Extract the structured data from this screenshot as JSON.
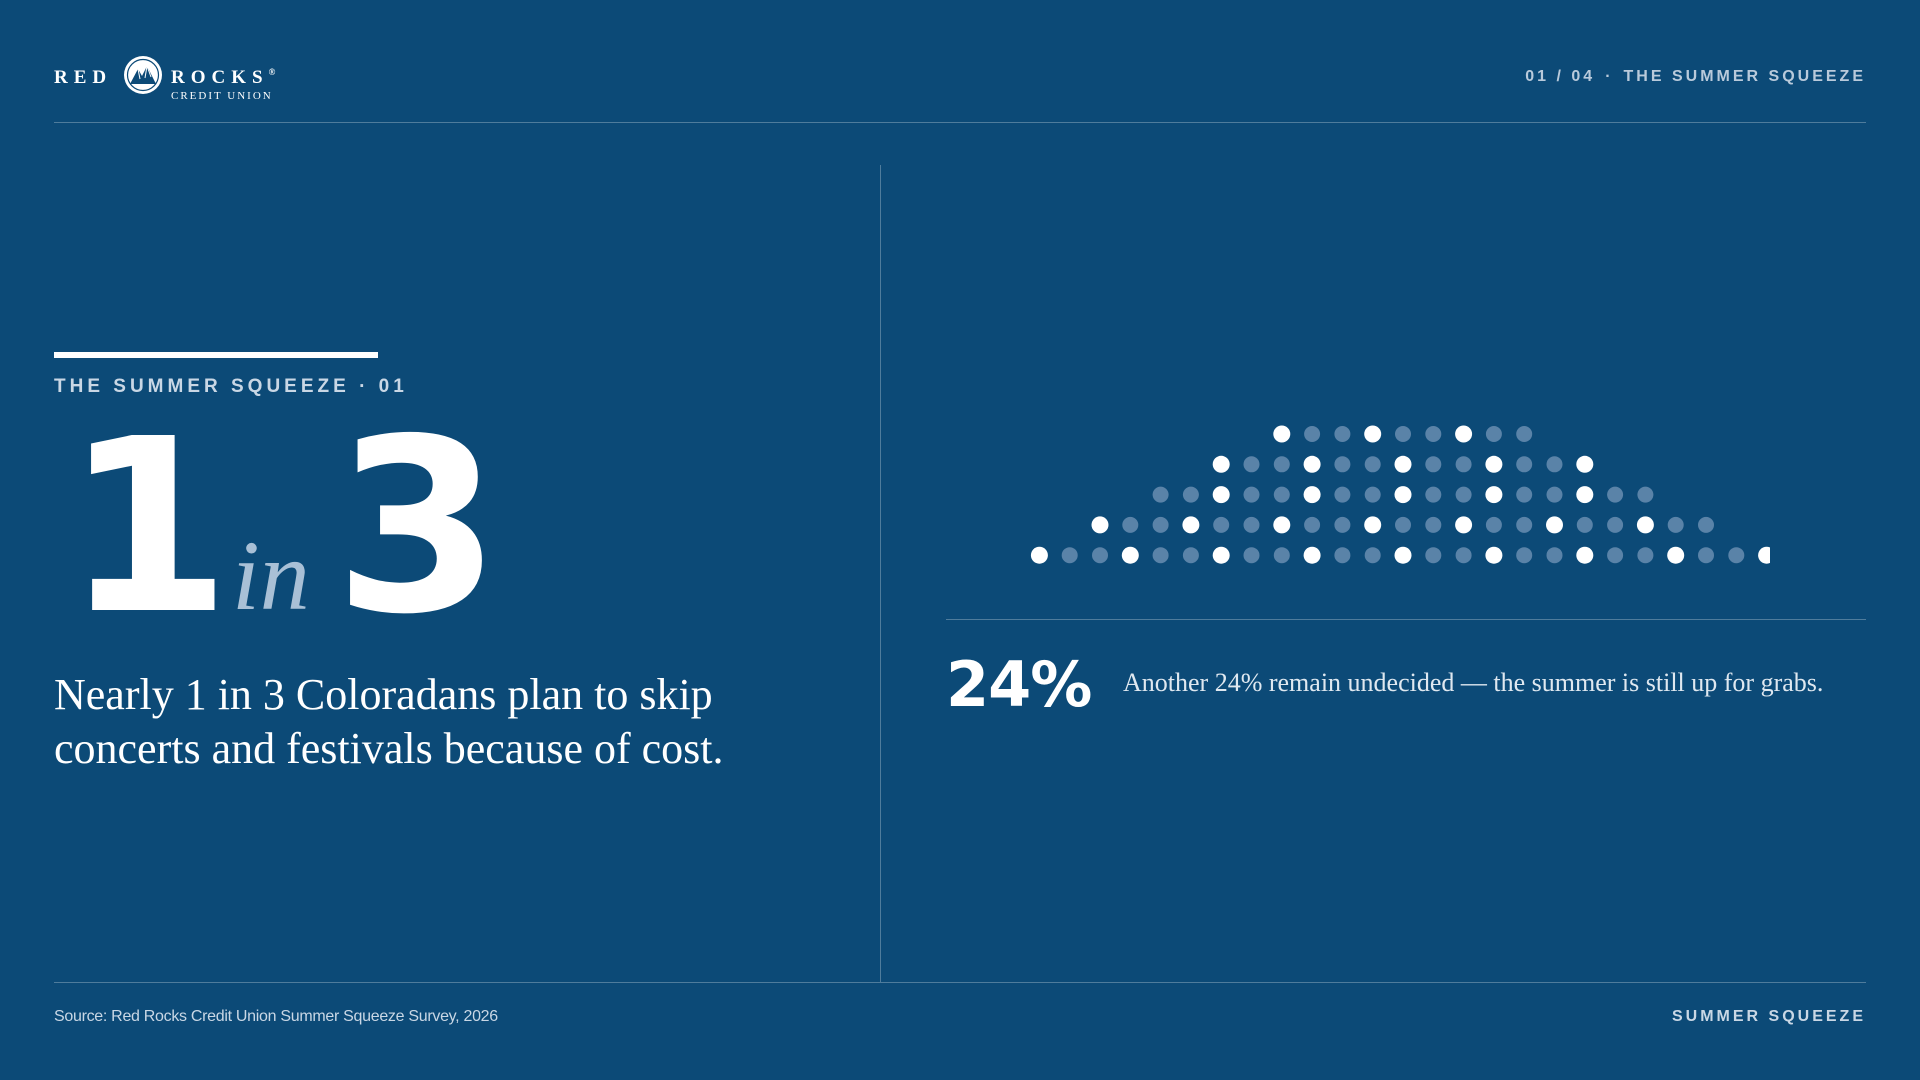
{
  "brand": {
    "name_left": "RED",
    "name_right": "ROCKS",
    "registered": "®",
    "subtitle": "CREDIT UNION",
    "emblem_icon": "mountain-emblem-icon"
  },
  "header": {
    "page": "01 / 04",
    "separator": "·",
    "section": "THE SUMMER SQUEEZE"
  },
  "left": {
    "kicker": "THE SUMMER SQUEEZE · 01",
    "stat_numerator": "1",
    "stat_word": "in",
    "stat_denominator": "3",
    "headline_line1": "Nearly 1 in 3 Coloradans plan to skip",
    "headline_line2": "concerts and festivals because of cost."
  },
  "chart_data": {
    "type": "dot-grid",
    "rows": [
      {
        "count": 9,
        "highlighted": [
          0,
          3,
          6
        ]
      },
      {
        "count": 13,
        "highlighted": [
          0,
          3,
          6,
          9,
          12
        ]
      },
      {
        "count": 17,
        "highlighted": [
          2,
          5,
          8,
          11,
          14
        ]
      },
      {
        "count": 21,
        "highlighted": [
          0,
          3,
          6,
          9,
          12,
          15,
          18
        ]
      },
      {
        "count": 25,
        "highlighted": [
          0,
          3,
          6,
          9,
          12,
          15,
          18,
          21,
          24
        ]
      }
    ],
    "highlight_color": "#ffffff",
    "base_color": "#5a83a8"
  },
  "stat2": {
    "value": "24%",
    "text": "Another 24% remain undecided — the summer is still up for grabs."
  },
  "footer": {
    "source": "Source: Red Rocks Credit Union Summer Squeeze Survey, 2026",
    "label": "SUMMER SQUEEZE"
  }
}
